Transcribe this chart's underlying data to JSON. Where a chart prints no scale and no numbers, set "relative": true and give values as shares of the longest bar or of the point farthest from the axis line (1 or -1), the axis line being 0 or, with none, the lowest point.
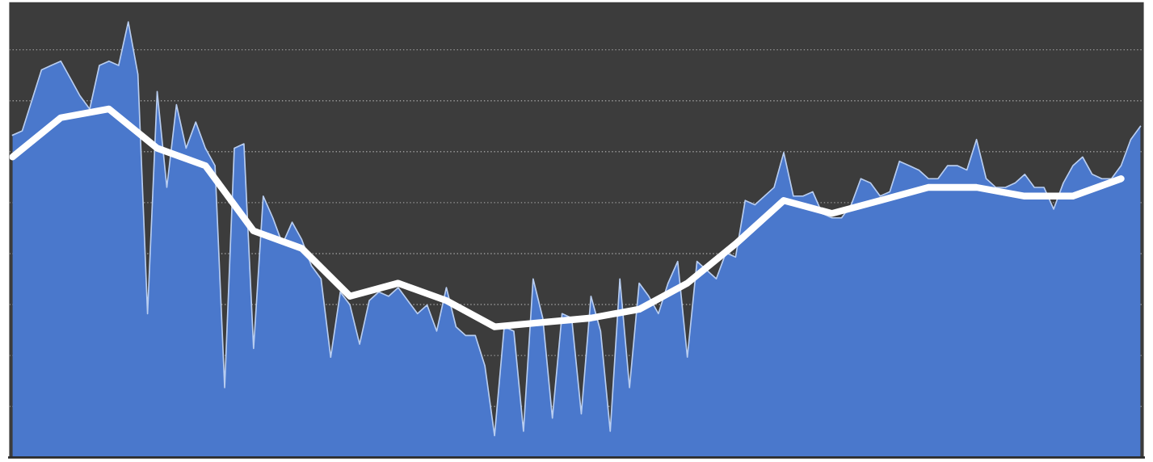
{
  "chart_data": {
    "type": "area",
    "relative": true,
    "grid": "y",
    "legend": false,
    "tick_labels": false,
    "categories": [
      null,
      null,
      null,
      null,
      null,
      null,
      null,
      null,
      null,
      null,
      null,
      null,
      null,
      null,
      null,
      null,
      null,
      null,
      null,
      null,
      null,
      null,
      null,
      null,
      null,
      null,
      null,
      null,
      null,
      null,
      null,
      null,
      null,
      null,
      null,
      null,
      null,
      null,
      null,
      null,
      null,
      null,
      null,
      null,
      null,
      null,
      null,
      null,
      null,
      null,
      null,
      null,
      null,
      null,
      null,
      null,
      null,
      null,
      null,
      null,
      null,
      null,
      null,
      null,
      null,
      null,
      null,
      null,
      null,
      null,
      null,
      null,
      null,
      null,
      null,
      null,
      null,
      null,
      null,
      null,
      null,
      null,
      null,
      null,
      null,
      null,
      null,
      null,
      null,
      null,
      null,
      null,
      null,
      null,
      null,
      null,
      null,
      null,
      null,
      null,
      null,
      null,
      null,
      null,
      null,
      null,
      null,
      null,
      null,
      null,
      null,
      null,
      null,
      null,
      null,
      null,
      null,
      null
    ],
    "series": [
      {
        "color": "#4a78cc",
        "values": [
          0.74,
          0.75,
          0.82,
          0.89,
          0.9,
          0.91,
          0.87,
          0.83,
          0.8,
          0.9,
          0.91,
          0.9,
          1.0,
          0.88,
          0.33,
          0.84,
          0.62,
          0.81,
          0.71,
          0.77,
          0.71,
          0.67,
          0.16,
          0.71,
          0.72,
          0.25,
          0.6,
          0.55,
          0.49,
          0.54,
          0.5,
          0.44,
          0.41,
          0.23,
          0.38,
          0.35,
          0.26,
          0.36,
          0.38,
          0.37,
          0.39,
          0.36,
          0.33,
          0.35,
          0.29,
          0.39,
          0.3,
          0.28,
          0.28,
          0.21,
          0.05,
          0.3,
          0.29,
          0.06,
          0.41,
          0.32,
          0.09,
          0.33,
          0.32,
          0.1,
          0.37,
          0.29,
          0.06,
          0.41,
          0.16,
          0.4,
          0.37,
          0.33,
          0.4,
          0.45,
          0.23,
          0.45,
          0.43,
          0.41,
          0.47,
          0.46,
          0.59,
          0.58,
          0.6,
          0.62,
          0.7,
          0.6,
          0.6,
          0.61,
          0.56,
          0.55,
          0.55,
          0.58,
          0.64,
          0.63,
          0.6,
          0.61,
          0.68,
          0.67,
          0.66,
          0.64,
          0.64,
          0.67,
          0.67,
          0.66,
          0.73,
          0.64,
          0.62,
          0.62,
          0.63,
          0.65,
          0.62,
          0.62,
          0.57,
          0.63,
          0.67,
          0.69,
          0.65,
          0.64,
          0.64,
          0.67,
          0.73,
          0.76
        ]
      },
      {
        "type": "line",
        "color": "#ffffff",
        "values": [
          0.69,
          null,
          null,
          null,
          null,
          0.78,
          null,
          null,
          null,
          null,
          0.8,
          null,
          null,
          null,
          null,
          0.71,
          null,
          null,
          null,
          null,
          0.67,
          null,
          null,
          null,
          null,
          0.52,
          null,
          null,
          null,
          null,
          0.48,
          null,
          null,
          null,
          null,
          0.37,
          null,
          null,
          null,
          null,
          0.4,
          null,
          null,
          null,
          null,
          0.36,
          null,
          null,
          null,
          null,
          0.3,
          null,
          null,
          null,
          null,
          0.31,
          null,
          null,
          null,
          null,
          0.32,
          null,
          null,
          null,
          null,
          0.34,
          null,
          null,
          null,
          null,
          0.4,
          null,
          null,
          null,
          null,
          0.49,
          null,
          null,
          null,
          null,
          0.59,
          null,
          null,
          null,
          null,
          0.56,
          null,
          null,
          null,
          null,
          0.59,
          null,
          null,
          null,
          null,
          0.62,
          null,
          null,
          null,
          null,
          0.62,
          null,
          null,
          null,
          null,
          0.6,
          null,
          null,
          null,
          null,
          0.6,
          null,
          null,
          null,
          null,
          0.64,
          null,
          null
        ]
      }
    ]
  }
}
